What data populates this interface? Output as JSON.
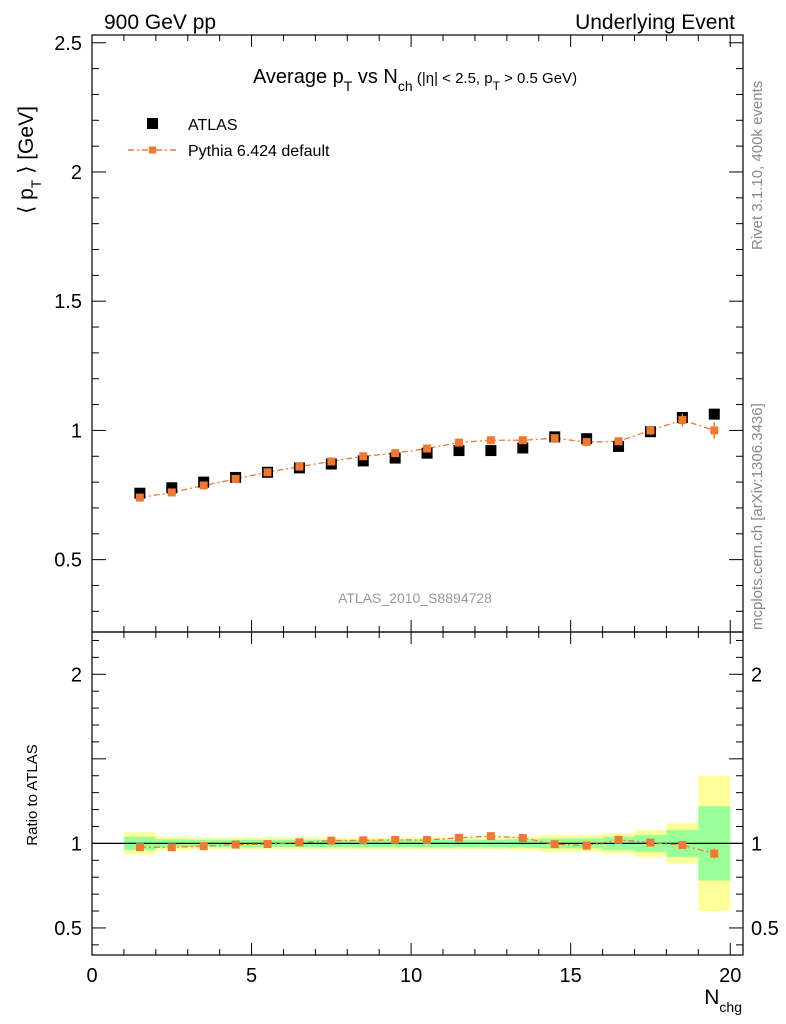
{
  "header": {
    "left": "900 GeV pp",
    "right": "Underlying Event"
  },
  "side_labels": {
    "rivet": "Rivet 3.1.10,  400k events",
    "mcplots": "mcplots.cern.ch [arXiv:1306.3436]"
  },
  "chart_data": [
    {
      "type": "scatter",
      "panel": "main",
      "title": {
        "main": "Average p",
        "sub1": "T",
        "mid": " vs N",
        "sub2": "ch",
        "cut1": " (|η| < 2.5, p",
        "sub3": "T",
        "cut2": " > 0.5 GeV)"
      },
      "ylabel": {
        "pre": "⟨ p",
        "sub": "T",
        "post": " ⟩ [GeV]"
      },
      "xlim": [
        0,
        20.4
      ],
      "ylim": [
        0.22,
        2.53
      ],
      "yticks": [
        0.5,
        1,
        1.5,
        2,
        2.5
      ],
      "ytick_labels": [
        "0.5",
        "1",
        "1.5",
        "2",
        "2.5"
      ],
      "watermark": "ATLAS_2010_S8894728",
      "legend": {
        "placement": "top-left",
        "entries": [
          "ATLAS",
          "Pythia 6.424 default"
        ]
      },
      "x": [
        1.5,
        2.5,
        3.5,
        4.5,
        5.5,
        6.5,
        7.5,
        8.5,
        9.5,
        10.5,
        11.5,
        12.5,
        13.5,
        14.5,
        15.5,
        16.5,
        17.5,
        18.5,
        19.5
      ],
      "series": [
        {
          "name": "ATLAS",
          "color": "#000000",
          "marker": "square",
          "values": [
            0.757,
            0.778,
            0.8,
            0.818,
            0.838,
            0.855,
            0.87,
            0.882,
            0.893,
            0.912,
            0.922,
            0.922,
            0.932,
            0.975,
            0.968,
            0.938,
            0.995,
            1.05,
            1.063
          ]
        },
        {
          "name": "Pythia 6.424 default",
          "color": "#f07830",
          "marker": "square-line",
          "values": [
            0.74,
            0.76,
            0.787,
            0.812,
            0.838,
            0.86,
            0.88,
            0.9,
            0.912,
            0.93,
            0.953,
            0.962,
            0.962,
            0.97,
            0.955,
            0.958,
            1.0,
            1.04,
            1.0
          ],
          "errors": [
            0.005,
            0.005,
            0.005,
            0.005,
            0.006,
            0.006,
            0.006,
            0.007,
            0.007,
            0.008,
            0.008,
            0.009,
            0.01,
            0.011,
            0.012,
            0.014,
            0.018,
            0.025,
            0.032
          ]
        }
      ]
    },
    {
      "type": "scatter",
      "panel": "ratio",
      "ylabel": "Ratio to ATLAS",
      "xlabel": {
        "main": "N",
        "sub": "chg"
      },
      "xlim": [
        0,
        20.4
      ],
      "ylim": [
        0.34,
        2.25
      ],
      "yticks": [
        0.5,
        1,
        2
      ],
      "ytick_labels": [
        "0.5",
        "1",
        "2"
      ],
      "xticks": [
        0,
        5,
        10,
        15,
        20
      ],
      "xtick_labels": [
        "0",
        "5",
        "10",
        "15",
        "20"
      ],
      "bin_edges": [
        1,
        2,
        3,
        4,
        5,
        6,
        7,
        8,
        9,
        10,
        11,
        12,
        13,
        14,
        15,
        16,
        17,
        18,
        19,
        20
      ],
      "band_outer": [
        0.065,
        0.04,
        0.035,
        0.035,
        0.035,
        0.035,
        0.035,
        0.035,
        0.035,
        0.035,
        0.035,
        0.035,
        0.04,
        0.05,
        0.05,
        0.06,
        0.08,
        0.12,
        0.4
      ],
      "band_inner": [
        0.04,
        0.025,
        0.022,
        0.022,
        0.022,
        0.022,
        0.022,
        0.022,
        0.022,
        0.022,
        0.022,
        0.022,
        0.025,
        0.03,
        0.03,
        0.04,
        0.05,
        0.08,
        0.22
      ],
      "band_colors": {
        "outer": "#ffff99",
        "inner": "#99ff99"
      },
      "x": [
        1.5,
        2.5,
        3.5,
        4.5,
        5.5,
        6.5,
        7.5,
        8.5,
        9.5,
        10.5,
        11.5,
        12.5,
        13.5,
        14.5,
        15.5,
        16.5,
        17.5,
        18.5,
        19.5
      ],
      "series": [
        {
          "name": "Pythia 6.424 default",
          "color": "#f07830",
          "values": [
            0.978,
            0.977,
            0.984,
            0.993,
            0.996,
            1.006,
            1.016,
            1.018,
            1.021,
            1.02,
            1.033,
            1.043,
            1.032,
            0.995,
            0.987,
            1.021,
            1.005,
            0.99,
            0.94
          ],
          "errors": [
            0.007,
            0.007,
            0.007,
            0.007,
            0.007,
            0.007,
            0.007,
            0.008,
            0.008,
            0.009,
            0.009,
            0.01,
            0.011,
            0.012,
            0.013,
            0.015,
            0.019,
            0.024,
            0.03
          ]
        }
      ]
    }
  ]
}
